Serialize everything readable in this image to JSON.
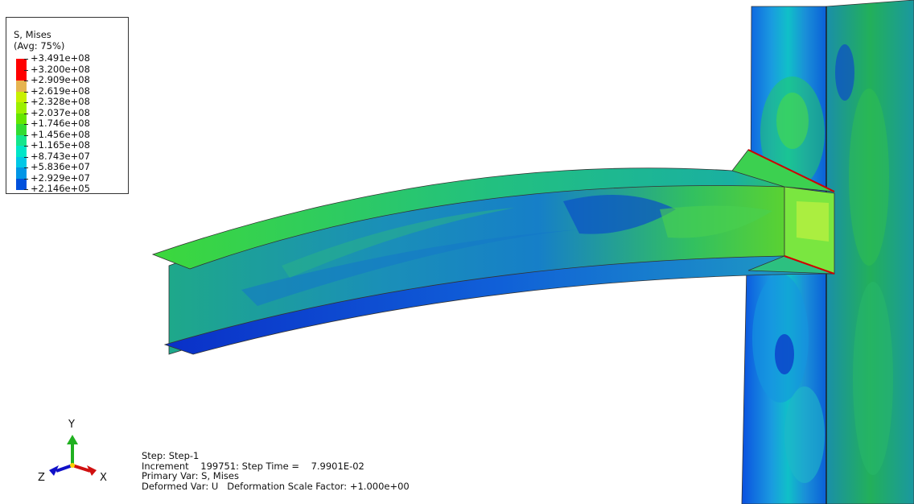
{
  "legend": {
    "title": "S, Mises",
    "subtitle": "(Avg: 75%)",
    "levels": [
      {
        "label": "+3.491e+08",
        "color": "#ff0000"
      },
      {
        "label": "+3.200e+08",
        "color": "#ff0000"
      },
      {
        "label": "+2.909e+08",
        "color": "#e6b450"
      },
      {
        "label": "+2.619e+08",
        "color": "#c8f000"
      },
      {
        "label": "+2.328e+08",
        "color": "#9cf000"
      },
      {
        "label": "+2.037e+08",
        "color": "#64e600"
      },
      {
        "label": "+1.746e+08",
        "color": "#32dc32"
      },
      {
        "label": "+1.456e+08",
        "color": "#14e68c"
      },
      {
        "label": "+1.165e+08",
        "color": "#00e6c8"
      },
      {
        "label": "+8.743e+07",
        "color": "#00c8e6"
      },
      {
        "label": "+5.836e+07",
        "color": "#0096e6"
      },
      {
        "label": "+2.929e+07",
        "color": "#0050dc"
      },
      {
        "label": "+2.146e+05",
        "color": "#0000c8"
      }
    ]
  },
  "triad": {
    "x_label": "X",
    "y_label": "Y",
    "z_label": "Z"
  },
  "info": {
    "step": "Step: Step-1",
    "increment": "Increment    199751: Step Time =    7.9901E-02",
    "primary_var": "Primary Var: S, Mises",
    "deformed_var": "Deformed Var: U   Deformation Scale Factor: +1.000e+00"
  }
}
